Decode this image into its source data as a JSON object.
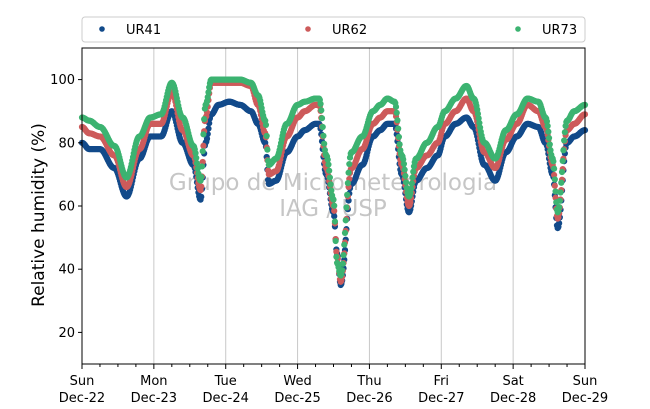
{
  "chart_data": {
    "type": "scatter",
    "ylabel": "Relative humidity (%)",
    "xlabel": "",
    "ylim": [
      10,
      110
    ],
    "xlim": [
      0,
      7
    ],
    "yticks": [
      20,
      40,
      60,
      80,
      100
    ],
    "xticks": [
      {
        "x": 0,
        "day": "Sun",
        "date": "Dec-22"
      },
      {
        "x": 1,
        "day": "Mon",
        "date": "Dec-23"
      },
      {
        "x": 2,
        "day": "Tue",
        "date": "Dec-24"
      },
      {
        "x": 3,
        "day": "Wed",
        "date": "Dec-25"
      },
      {
        "x": 4,
        "day": "Thu",
        "date": "Dec-26"
      },
      {
        "x": 5,
        "day": "Fri",
        "date": "Dec-27"
      },
      {
        "x": 6,
        "day": "Sat",
        "date": "Dec-28"
      },
      {
        "x": 7,
        "day": "Sun",
        "date": "Dec-29"
      }
    ],
    "grid": "vertical",
    "legend": "top",
    "watermark": [
      "Grupo de Micrometeorologia",
      "IAG / USP"
    ],
    "series": [
      {
        "name": "UR41",
        "color": "#124a8a",
        "x": [
          0,
          0.1,
          0.25,
          0.45,
          0.62,
          0.8,
          0.95,
          1.1,
          1.25,
          1.4,
          1.55,
          1.65,
          1.72,
          1.8,
          1.9,
          2.05,
          2.2,
          2.35,
          2.45,
          2.55,
          2.6,
          2.7,
          2.85,
          3.0,
          3.1,
          3.25,
          3.3,
          3.4,
          3.5,
          3.55,
          3.6,
          3.75,
          3.9,
          4.05,
          4.15,
          4.25,
          4.35,
          4.45,
          4.55,
          4.65,
          4.8,
          4.95,
          5.05,
          5.2,
          5.35,
          5.45,
          5.6,
          5.75,
          5.9,
          6.05,
          6.2,
          6.35,
          6.45,
          6.55,
          6.62,
          6.75,
          6.85,
          7.0
        ],
        "y": [
          80,
          78,
          78,
          72,
          63,
          75,
          82,
          82,
          90,
          80,
          73,
          62,
          80,
          89,
          92,
          93,
          92,
          90,
          86,
          80,
          67,
          68,
          77,
          82,
          84,
          86,
          86,
          70,
          58,
          45,
          35,
          67,
          73,
          82,
          84,
          86,
          86,
          70,
          58,
          68,
          72,
          76,
          82,
          86,
          88,
          85,
          73,
          68,
          77,
          82,
          86,
          85,
          80,
          70,
          53,
          80,
          82,
          84
        ]
      },
      {
        "name": "UR62",
        "color": "#cd5b5b",
        "x": [
          0,
          0.1,
          0.25,
          0.45,
          0.62,
          0.8,
          0.95,
          1.1,
          1.25,
          1.4,
          1.55,
          1.65,
          1.72,
          1.8,
          1.9,
          2.05,
          2.2,
          2.35,
          2.45,
          2.55,
          2.6,
          2.7,
          2.85,
          3.0,
          3.1,
          3.25,
          3.3,
          3.4,
          3.5,
          3.55,
          3.6,
          3.75,
          3.9,
          4.05,
          4.15,
          4.25,
          4.35,
          4.45,
          4.55,
          4.65,
          4.8,
          4.95,
          5.05,
          5.2,
          5.35,
          5.45,
          5.6,
          5.75,
          5.9,
          6.05,
          6.2,
          6.35,
          6.45,
          6.55,
          6.62,
          6.75,
          6.85,
          7.0
        ],
        "y": [
          85,
          83,
          82,
          76,
          66,
          78,
          86,
          86,
          96,
          84,
          76,
          65,
          88,
          99,
          99,
          99,
          99,
          98,
          92,
          83,
          70,
          71,
          82,
          88,
          90,
          92,
          92,
          72,
          60,
          44,
          36,
          72,
          78,
          86,
          88,
          90,
          90,
          73,
          60,
          72,
          76,
          80,
          86,
          90,
          94,
          90,
          77,
          72,
          81,
          86,
          92,
          90,
          85,
          73,
          56,
          84,
          86,
          89
        ]
      },
      {
        "name": "UR73",
        "color": "#3cb371",
        "x": [
          0,
          0.1,
          0.25,
          0.45,
          0.62,
          0.8,
          0.95,
          1.1,
          1.25,
          1.4,
          1.55,
          1.65,
          1.72,
          1.8,
          1.9,
          2.05,
          2.2,
          2.35,
          2.45,
          2.55,
          2.6,
          2.7,
          2.85,
          3.0,
          3.1,
          3.25,
          3.3,
          3.4,
          3.5,
          3.55,
          3.6,
          3.75,
          3.9,
          4.05,
          4.15,
          4.25,
          4.35,
          4.45,
          4.55,
          4.65,
          4.8,
          4.95,
          5.05,
          5.2,
          5.35,
          5.45,
          5.6,
          5.75,
          5.9,
          6.05,
          6.2,
          6.35,
          6.45,
          6.55,
          6.62,
          6.75,
          6.85,
          7.0
        ],
        "y": [
          88,
          87,
          85,
          79,
          69,
          82,
          88,
          89,
          99,
          88,
          79,
          68,
          92,
          100,
          100,
          100,
          100,
          99,
          95,
          87,
          73,
          75,
          86,
          92,
          93,
          94,
          94,
          76,
          62,
          42,
          38,
          77,
          82,
          90,
          92,
          94,
          93,
          76,
          63,
          75,
          80,
          85,
          90,
          94,
          98,
          94,
          80,
          75,
          84,
          89,
          94,
          93,
          88,
          75,
          58,
          87,
          90,
          92
        ]
      }
    ]
  }
}
